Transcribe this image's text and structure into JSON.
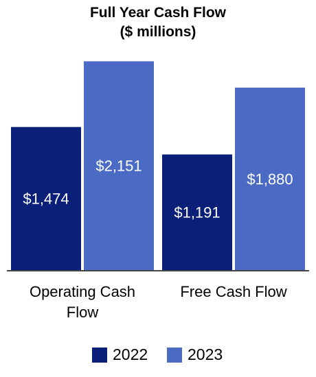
{
  "chart_data": {
    "type": "bar",
    "title": "Full Year Cash Flow",
    "subtitle": "($ millions)",
    "categories": [
      "Operating Cash Flow",
      "Free Cash Flow"
    ],
    "category_lines": [
      [
        "Operating Cash",
        "Flow"
      ],
      [
        "Free Cash Flow"
      ]
    ],
    "series": [
      {
        "name": "2022",
        "values": [
          1474,
          1191
        ],
        "labels": [
          "$1,474",
          "$1,191"
        ],
        "color": "#0a1f78"
      },
      {
        "name": "2023",
        "values": [
          2151,
          1880
        ],
        "labels": [
          "$2,151",
          "$1,880"
        ],
        "color": "#4a6ac4"
      }
    ],
    "ylim": [
      0,
      3000
    ],
    "grid": false,
    "legend": "bottom"
  }
}
